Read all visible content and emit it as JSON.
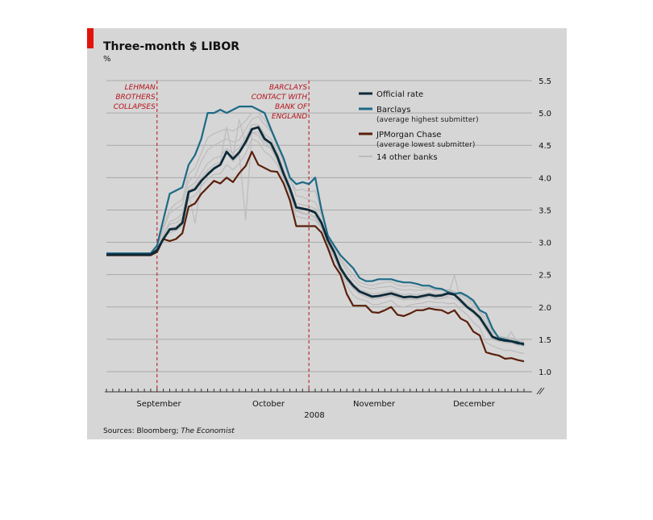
{
  "chart_data": {
    "type": "line",
    "title": "Three-month $ LIBOR",
    "unit": "%",
    "year_label": "2008",
    "source_prefix": "Sources: Bloomberg; ",
    "source_italic": "The Economist",
    "x_labels": [
      "September",
      "October",
      "November",
      "December"
    ],
    "y_ticks": [
      "5.5",
      "5.0",
      "4.5",
      "4.0",
      "3.5",
      "3.0",
      "2.5",
      "2.0",
      "1.5",
      "1.0"
    ],
    "ylim": [
      0.7,
      5.5
    ],
    "x_domain": [
      0,
      66
    ],
    "annotations": [
      {
        "x": 8,
        "lines": [
          "LEHMAN",
          "BROTHERS",
          "COLLAPSES"
        ]
      },
      {
        "x": 32,
        "lines": [
          "BARCLAYS",
          "CONTACT WITH",
          "BANK OF",
          "ENGLAND"
        ]
      }
    ],
    "legend": [
      {
        "label": "Official rate",
        "sublabel": "",
        "color": "#0d2a38",
        "width": 3
      },
      {
        "label": "Barclays",
        "sublabel": "(average highest submitter)",
        "color": "#1d6a86",
        "width": 3
      },
      {
        "label": "JPMorgan Chase",
        "sublabel": "(average lowest submitter)",
        "color": "#5a1f0a",
        "width": 3
      },
      {
        "label": "14 other banks",
        "sublabel": "",
        "color": "#bcbcbc",
        "width": 2
      }
    ],
    "colors": {
      "background": "#d6d6d6",
      "official": "#0d2a38",
      "barclays": "#1d6a86",
      "jpmorgan": "#5a1f0a",
      "others": "#bcbcbc",
      "annotation": "#b5121b",
      "brand": "#e3120b"
    },
    "series": [
      {
        "name": "Official rate",
        "key": "official",
        "values": [
          2.81,
          2.81,
          2.81,
          2.81,
          2.81,
          2.81,
          2.81,
          2.81,
          2.88,
          3.05,
          3.2,
          3.21,
          3.3,
          3.78,
          3.82,
          3.95,
          4.05,
          4.14,
          4.2,
          4.4,
          4.29,
          4.39,
          4.55,
          4.75,
          4.78,
          4.6,
          4.53,
          4.33,
          4.06,
          3.83,
          3.54,
          3.52,
          3.5,
          3.46,
          3.3,
          3.03,
          2.85,
          2.6,
          2.45,
          2.33,
          2.24,
          2.2,
          2.16,
          2.17,
          2.19,
          2.21,
          2.18,
          2.15,
          2.16,
          2.15,
          2.17,
          2.19,
          2.17,
          2.18,
          2.21,
          2.19,
          2.1,
          2.0,
          1.93,
          1.84,
          1.69,
          1.54,
          1.5,
          1.48,
          1.47,
          1.44,
          1.43
        ]
      },
      {
        "name": "Barclays",
        "key": "barclays",
        "values": [
          2.83,
          2.83,
          2.83,
          2.83,
          2.83,
          2.83,
          2.83,
          2.83,
          2.95,
          3.35,
          3.75,
          3.8,
          3.85,
          4.2,
          4.35,
          4.6,
          5.0,
          5.0,
          5.05,
          5.0,
          5.05,
          5.1,
          5.1,
          5.1,
          5.05,
          5.0,
          4.75,
          4.52,
          4.3,
          4.0,
          3.9,
          3.93,
          3.9,
          4.0,
          3.5,
          3.1,
          2.95,
          2.8,
          2.7,
          2.6,
          2.45,
          2.4,
          2.4,
          2.43,
          2.43,
          2.43,
          2.4,
          2.38,
          2.38,
          2.36,
          2.33,
          2.33,
          2.29,
          2.28,
          2.23,
          2.2,
          2.22,
          2.17,
          2.1,
          1.95,
          1.9,
          1.67,
          1.52,
          1.5,
          1.47,
          1.46,
          1.41
        ]
      },
      {
        "name": "JPMorgan Chase",
        "key": "jpmorgan",
        "values": [
          2.8,
          2.8,
          2.8,
          2.8,
          2.8,
          2.8,
          2.8,
          2.8,
          2.85,
          3.05,
          3.02,
          3.05,
          3.14,
          3.55,
          3.6,
          3.75,
          3.85,
          3.95,
          3.91,
          4.0,
          3.93,
          4.07,
          4.18,
          4.4,
          4.2,
          4.15,
          4.1,
          4.09,
          3.91,
          3.65,
          3.25,
          3.25,
          3.25,
          3.25,
          3.15,
          2.91,
          2.65,
          2.5,
          2.2,
          2.02,
          2.02,
          2.02,
          1.92,
          1.91,
          1.95,
          2.0,
          1.88,
          1.86,
          1.9,
          1.95,
          1.95,
          1.98,
          1.96,
          1.95,
          1.9,
          1.95,
          1.82,
          1.77,
          1.62,
          1.56,
          1.3,
          1.27,
          1.25,
          1.2,
          1.21,
          1.18,
          1.16
        ]
      },
      {
        "name": "",
        "key": "others",
        "values": [
          2.82,
          2.82,
          2.82,
          2.82,
          2.82,
          2.82,
          2.82,
          2.82,
          2.92,
          3.2,
          3.45,
          3.52,
          3.58,
          3.95,
          4.02,
          4.25,
          4.43,
          4.5,
          4.55,
          4.6,
          4.55,
          4.58,
          4.75,
          4.9,
          4.95,
          4.82,
          4.71,
          4.52,
          4.25,
          4.0,
          3.72,
          3.7,
          3.66,
          3.62,
          3.42,
          3.13,
          2.95,
          2.72,
          2.56,
          2.42,
          2.33,
          2.3,
          2.28,
          2.3,
          2.31,
          2.32,
          2.28,
          2.26,
          2.27,
          2.26,
          2.26,
          2.28,
          2.25,
          2.26,
          2.27,
          2.24,
          2.18,
          2.1,
          2.02,
          1.91,
          1.76,
          1.6,
          1.55,
          1.53,
          1.52,
          1.5,
          1.49
        ]
      },
      {
        "name": "",
        "key": "others",
        "values": [
          2.81,
          2.81,
          2.81,
          2.81,
          2.81,
          2.81,
          2.81,
          2.81,
          2.9,
          3.12,
          3.32,
          3.36,
          3.44,
          3.85,
          3.92,
          4.07,
          4.22,
          4.3,
          4.33,
          4.45,
          4.38,
          4.46,
          4.62,
          4.82,
          4.82,
          4.67,
          4.6,
          4.4,
          4.13,
          3.88,
          3.6,
          3.58,
          3.56,
          3.52,
          3.35,
          3.07,
          2.88,
          2.64,
          2.48,
          2.36,
          2.27,
          2.24,
          2.2,
          2.21,
          2.23,
          2.25,
          2.21,
          2.19,
          2.2,
          2.19,
          2.2,
          2.22,
          2.2,
          2.21,
          2.23,
          2.2,
          2.13,
          2.04,
          1.96,
          1.86,
          1.72,
          1.56,
          1.52,
          1.5,
          1.49,
          1.46,
          1.45
        ]
      },
      {
        "name": "",
        "key": "others",
        "values": [
          2.8,
          2.8,
          2.8,
          2.8,
          2.8,
          2.8,
          2.8,
          2.8,
          2.86,
          3.08,
          3.15,
          3.18,
          3.25,
          3.68,
          3.72,
          3.87,
          3.98,
          4.05,
          4.06,
          4.2,
          4.12,
          4.22,
          4.37,
          4.6,
          4.55,
          4.4,
          4.33,
          4.2,
          3.98,
          3.74,
          3.4,
          3.38,
          3.36,
          3.34,
          3.22,
          2.96,
          2.76,
          2.54,
          2.33,
          2.18,
          2.12,
          2.1,
          2.04,
          2.04,
          2.07,
          2.1,
          2.02,
          2.0,
          2.03,
          2.05,
          2.06,
          2.09,
          2.07,
          2.07,
          2.05,
          2.06,
          1.96,
          1.88,
          1.76,
          1.68,
          1.45,
          1.4,
          1.36,
          1.33,
          1.33,
          1.3,
          1.28
        ]
      },
      {
        "name": "",
        "key": "others",
        "values": [
          2.82,
          2.82,
          2.82,
          2.82,
          2.82,
          2.82,
          2.82,
          2.82,
          2.93,
          3.25,
          3.5,
          3.6,
          3.66,
          4.05,
          4.15,
          4.38,
          4.62,
          4.68,
          4.72,
          4.75,
          4.72,
          4.78,
          4.88,
          5.0,
          5.0,
          4.9,
          4.72,
          4.48,
          4.24,
          3.96,
          3.8,
          3.82,
          3.78,
          3.8,
          3.46,
          3.08,
          2.92,
          2.75,
          2.62,
          2.5,
          2.38,
          2.35,
          2.33,
          2.36,
          2.38,
          2.39,
          2.34,
          2.32,
          2.33,
          2.31,
          2.29,
          2.3,
          2.26,
          2.26,
          2.25,
          2.22,
          2.2,
          2.14,
          2.06,
          1.93,
          1.83,
          1.63,
          1.54,
          1.52,
          1.5,
          1.48,
          1.46
        ]
      },
      {
        "name": "",
        "key": "others",
        "values": [
          2.81,
          2.81,
          2.81,
          2.81,
          2.81,
          2.81,
          2.81,
          2.81,
          2.89,
          3.1,
          3.28,
          3.3,
          3.38,
          3.8,
          3.86,
          4.0,
          4.12,
          4.2,
          4.24,
          4.78,
          4.3,
          4.9,
          4.5,
          4.7,
          4.7,
          4.55,
          4.47,
          4.3,
          4.05,
          3.8,
          3.5,
          3.46,
          3.44,
          3.4,
          3.25,
          3.0,
          2.8,
          2.58,
          2.42,
          2.3,
          2.22,
          2.18,
          2.14,
          2.15,
          2.17,
          2.19,
          2.16,
          2.13,
          2.14,
          2.13,
          2.15,
          2.17,
          2.14,
          2.15,
          2.17,
          2.5,
          2.08,
          2.0,
          1.92,
          1.82,
          1.66,
          1.52,
          1.49,
          1.47,
          1.62,
          1.43,
          1.42
        ]
      },
      {
        "name": "",
        "key": "others",
        "values": [
          2.81,
          2.81,
          2.81,
          2.81,
          2.81,
          2.81,
          2.81,
          2.81,
          2.88,
          3.06,
          3.22,
          3.24,
          3.34,
          3.75,
          3.3,
          3.92,
          4.08,
          4.16,
          4.2,
          4.38,
          4.25,
          4.35,
          3.35,
          4.7,
          4.65,
          4.5,
          4.45,
          4.26,
          4.0,
          3.78,
          3.48,
          3.44,
          3.42,
          3.38,
          3.24,
          2.98,
          2.78,
          2.56,
          2.4,
          2.28,
          2.2,
          2.16,
          2.12,
          2.13,
          2.15,
          2.17,
          2.14,
          2.11,
          2.12,
          2.11,
          2.13,
          2.15,
          2.12,
          2.13,
          2.15,
          2.13,
          2.06,
          1.98,
          1.9,
          1.8,
          1.64,
          1.5,
          1.47,
          1.45,
          1.44,
          1.41,
          1.4
        ]
      }
    ]
  }
}
